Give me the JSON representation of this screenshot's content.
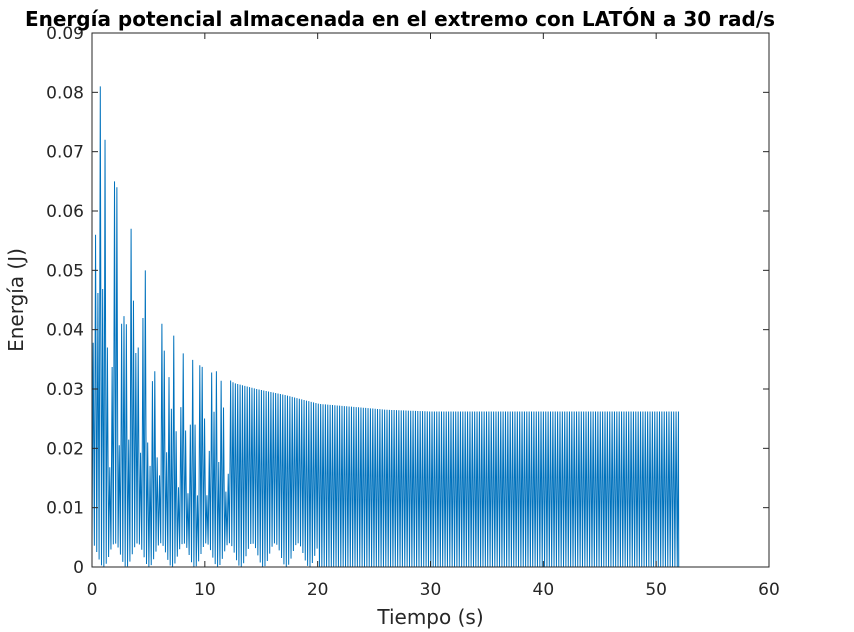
{
  "chart_data": {
    "type": "line",
    "title": "Energía potencial almacenada en el extremo con LATÓN a 30 rad/s",
    "xlabel": "Tiempo (s)",
    "ylabel": "Energía (J)",
    "xlim": [
      0,
      60
    ],
    "ylim": [
      0,
      0.09
    ],
    "xticks": [
      "0",
      "10",
      "20",
      "30",
      "40",
      "50",
      "60"
    ],
    "yticks": [
      "0",
      "0.01",
      "0.02",
      "0.03",
      "0.04",
      "0.05",
      "0.06",
      "0.07",
      "0.08",
      "0.09"
    ],
    "grid": false,
    "legend": "none",
    "series": [
      {
        "color": "#0072BD",
        "description_x_end": 52,
        "peaks": [
          {
            "t": 0.3,
            "e": 0.056
          },
          {
            "t": 0.6,
            "e": 0.081
          },
          {
            "t": 0.95,
            "e": 0.072
          },
          {
            "t": 1.3,
            "e": 0.037
          },
          {
            "t": 1.8,
            "e": 0.065
          },
          {
            "t": 2.1,
            "e": 0.064
          },
          {
            "t": 2.6,
            "e": 0.041
          },
          {
            "t": 3.3,
            "e": 0.057
          },
          {
            "t": 3.9,
            "e": 0.037
          },
          {
            "t": 4.6,
            "e": 0.05
          },
          {
            "t": 5.4,
            "e": 0.033
          },
          {
            "t": 6.0,
            "e": 0.041
          },
          {
            "t": 6.8,
            "e": 0.032
          },
          {
            "t": 7.2,
            "e": 0.039
          },
          {
            "t": 8.0,
            "e": 0.036
          },
          {
            "t": 9.5,
            "e": 0.034
          },
          {
            "t": 11.0,
            "e": 0.033
          },
          {
            "t": 12.5,
            "e": 0.031
          },
          {
            "t": 14.5,
            "e": 0.03
          },
          {
            "t": 17.0,
            "e": 0.029
          },
          {
            "t": 20.0,
            "e": 0.0275
          },
          {
            "t": 23.0,
            "e": 0.027
          },
          {
            "t": 26.0,
            "e": 0.0265
          },
          {
            "t": 30.0,
            "e": 0.0262
          },
          {
            "t": 52.0,
            "e": 0.0262
          }
        ]
      }
    ]
  }
}
